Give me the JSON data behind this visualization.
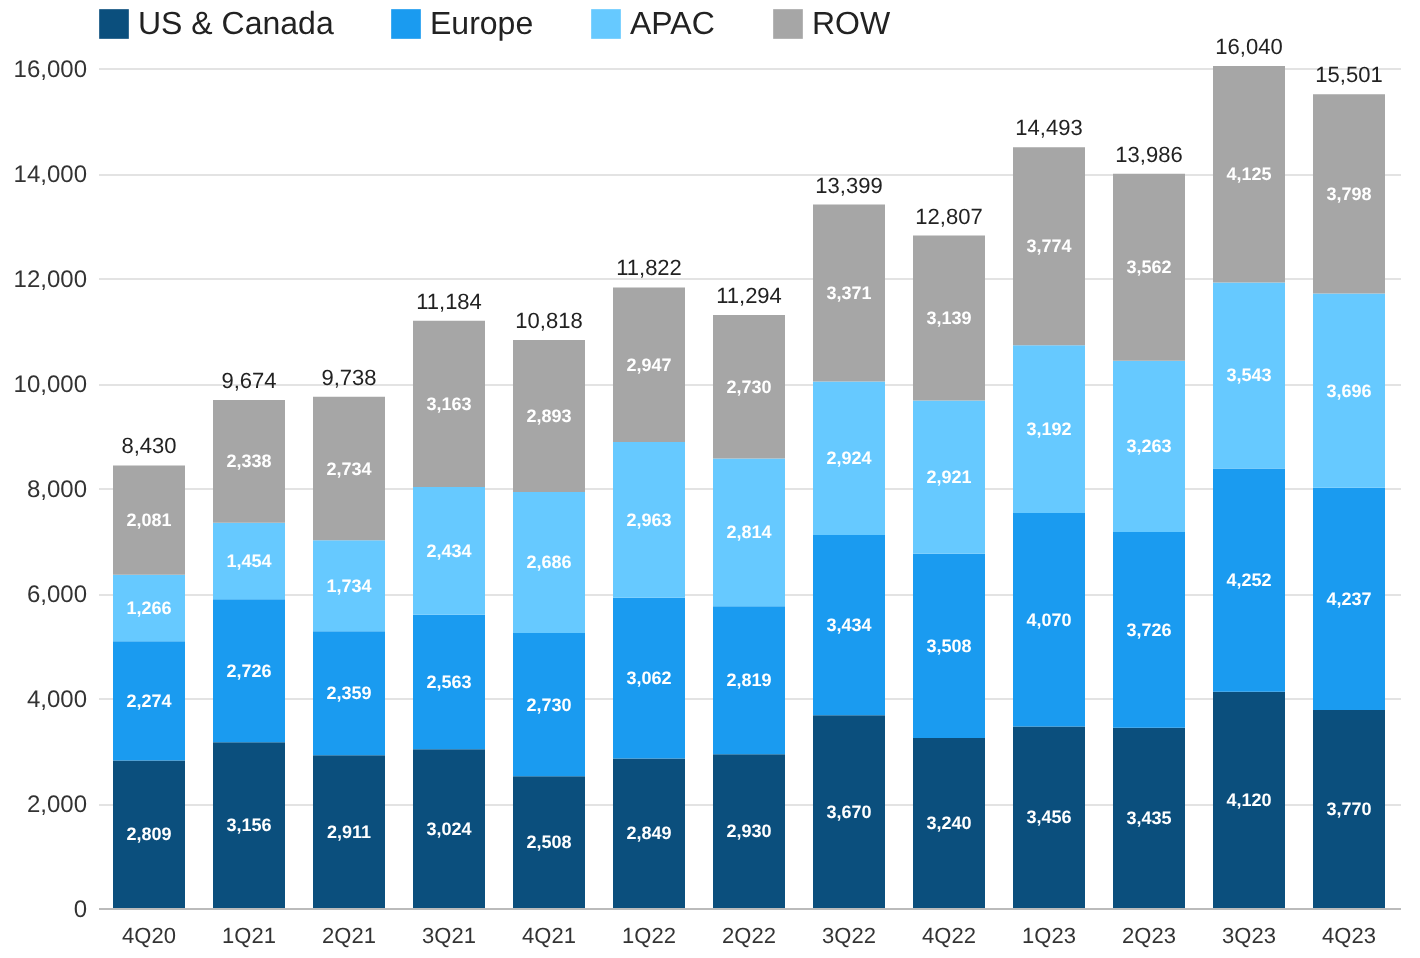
{
  "chart_data": {
    "type": "bar",
    "stacked": true,
    "categories": [
      "4Q20",
      "1Q21",
      "2Q21",
      "3Q21",
      "4Q21",
      "1Q22",
      "2Q22",
      "3Q22",
      "4Q22",
      "1Q23",
      "2Q23",
      "3Q23",
      "4Q23"
    ],
    "series": [
      {
        "name": "US & Canada",
        "color": "#0b4f7d",
        "values": [
          2809,
          3156,
          2911,
          3024,
          2508,
          2849,
          2930,
          3670,
          3240,
          3456,
          3435,
          4120,
          3770
        ],
        "value_labels": [
          "2,809",
          "3,156",
          "2,911",
          "3,024",
          "2,508",
          "2,849",
          "2,930",
          "3,670",
          "3,240",
          "3,456",
          "3,435",
          "4,120",
          "3,770"
        ]
      },
      {
        "name": "Europe",
        "color": "#1a9bf0",
        "values": [
          2274,
          2726,
          2359,
          2563,
          2730,
          3062,
          2819,
          3434,
          3508,
          4070,
          3726,
          4252,
          4237
        ],
        "value_labels": [
          "2,274",
          "2,726",
          "2,359",
          "2,563",
          "2,730",
          "3,062",
          "2,819",
          "3,434",
          "3,508",
          "4,070",
          "3,726",
          "4,252",
          "4,237"
        ]
      },
      {
        "name": "APAC",
        "color": "#66c9ff",
        "values": [
          1266,
          1454,
          1734,
          2434,
          2686,
          2963,
          2814,
          2924,
          2921,
          3192,
          3263,
          3543,
          3696
        ],
        "value_labels": [
          "1,266",
          "1,454",
          "1,734",
          "2,434",
          "2,686",
          "2,963",
          "2,814",
          "2,924",
          "2,921",
          "3,192",
          "3,263",
          "3,543",
          "3,696"
        ]
      },
      {
        "name": "ROW",
        "color": "#a6a6a6",
        "values": [
          2081,
          2338,
          2734,
          3163,
          2893,
          2947,
          2730,
          3371,
          3139,
          3774,
          3562,
          4125,
          3798
        ],
        "value_labels": [
          "2,081",
          "2,338",
          "2,734",
          "3,163",
          "2,893",
          "2,947",
          "2,730",
          "3,371",
          "3,139",
          "3,774",
          "3,562",
          "4,125",
          "3,798"
        ]
      }
    ],
    "totals": [
      "8,430",
      "9,674",
      "9,738",
      "11,184",
      "10,818",
      "11,822",
      "11,294",
      "13,399",
      "12,807",
      "14,493",
      "13,986",
      "16,040",
      "15,501"
    ],
    "ylim": [
      0,
      16000
    ],
    "yticks": [
      0,
      {
        "value": 2000,
        "label": "2,000"
      },
      {
        "value": 4000,
        "label": "4,000"
      },
      {
        "value": 6000,
        "label": "6,000"
      },
      {
        "value": 8000,
        "label": "8,000"
      },
      {
        "value": 10000,
        "label": "10,000"
      },
      {
        "value": 12000,
        "label": "12,000"
      },
      {
        "value": 14000,
        "label": "14,000"
      },
      {
        "value": 16000,
        "label": "16,000"
      }
    ],
    "grid": "y",
    "legend": "top left"
  }
}
